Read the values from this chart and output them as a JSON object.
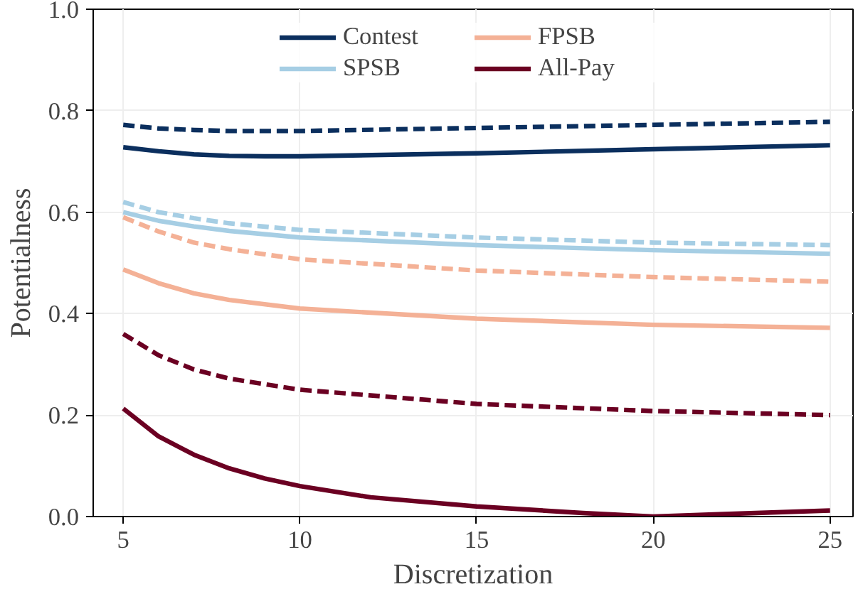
{
  "chart_data": {
    "type": "line",
    "xlabel": "Discretization",
    "ylabel": "Potentialness",
    "xlim": [
      4.15,
      25.65
    ],
    "ylim": [
      0,
      1.0
    ],
    "xticks": [
      5,
      10,
      15,
      20,
      25
    ],
    "yticks": [
      {
        "value": 0,
        "label": "0.0"
      },
      0.2,
      0.4,
      0.6,
      0.8,
      {
        "value": 1,
        "label": "1.0"
      }
    ],
    "grid": true,
    "legend": "top",
    "marker": "none",
    "series": [
      {
        "name": "Contest",
        "color": "#0b2f5e",
        "line_style": "solid",
        "x": [
          5,
          6,
          7,
          8,
          9,
          10,
          15,
          20,
          25
        ],
        "values": [
          0.728,
          0.72,
          0.714,
          0.711,
          0.71,
          0.71,
          0.716,
          0.724,
          0.732
        ]
      },
      {
        "name": "SPSB",
        "color": "#a6cee4",
        "line_style": "solid",
        "x": [
          5,
          6,
          7,
          8,
          10,
          15,
          20,
          25
        ],
        "values": [
          0.6,
          0.583,
          0.572,
          0.563,
          0.55,
          0.535,
          0.525,
          0.518
        ]
      },
      {
        "name": "FPSB",
        "color": "#f4b196",
        "line_style": "solid",
        "x": [
          5,
          6,
          7,
          8,
          10,
          15,
          20,
          25
        ],
        "values": [
          0.487,
          0.46,
          0.44,
          0.427,
          0.41,
          0.39,
          0.378,
          0.372
        ]
      },
      {
        "name": "All-Pay",
        "color": "#6b0022",
        "line_style": "solid",
        "x": [
          5,
          6,
          7,
          8,
          9,
          10,
          12,
          15,
          18,
          20,
          22,
          25
        ],
        "values": [
          0.213,
          0.158,
          0.122,
          0.095,
          0.075,
          0.06,
          0.038,
          0.02,
          0.007,
          0.0,
          0.005,
          0.012
        ]
      },
      {
        "color": "#0b2f5e",
        "line_style": "dashed",
        "x": [
          5,
          6,
          7,
          8,
          10,
          15,
          20,
          25
        ],
        "values": [
          0.772,
          0.765,
          0.762,
          0.76,
          0.76,
          0.766,
          0.772,
          0.778
        ]
      },
      {
        "color": "#a6cee4",
        "line_style": "dashed",
        "x": [
          5,
          6,
          7,
          8,
          10,
          15,
          20,
          25
        ],
        "values": [
          0.62,
          0.6,
          0.588,
          0.578,
          0.565,
          0.55,
          0.54,
          0.535
        ]
      },
      {
        "color": "#f4b196",
        "line_style": "dashed",
        "x": [
          5,
          6,
          7,
          8,
          10,
          15,
          20,
          25
        ],
        "values": [
          0.59,
          0.562,
          0.54,
          0.527,
          0.507,
          0.485,
          0.472,
          0.463
        ]
      },
      {
        "color": "#6b0022",
        "line_style": "dashed",
        "x": [
          5,
          6,
          7,
          8,
          10,
          15,
          20,
          25
        ],
        "values": [
          0.36,
          0.318,
          0.29,
          0.272,
          0.25,
          0.222,
          0.208,
          0.2
        ]
      }
    ]
  }
}
